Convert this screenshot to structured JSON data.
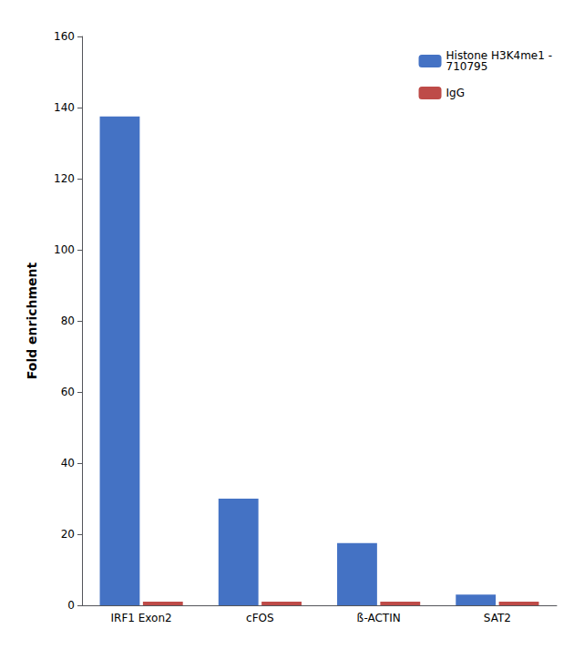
{
  "chart_data": {
    "type": "bar",
    "categories": [
      "IRF1 Exon2",
      "cFOS",
      "ß-ACTIN",
      "SAT2"
    ],
    "series": [
      {
        "name": "Histone H3K4me1 -\n710795",
        "color": "#4472C4",
        "values": [
          137.5,
          30.0,
          17.5,
          3.0
        ]
      },
      {
        "name": "IgG",
        "color": "#BE4B48",
        "values": [
          1.0,
          1.0,
          1.0,
          1.0
        ]
      }
    ],
    "ylabel": "Fold enrichment",
    "ylim": [
      0,
      160
    ],
    "yticks": [
      0,
      20,
      40,
      60,
      80,
      100,
      120,
      140,
      160
    ],
    "grid": false,
    "legend": "upper right"
  }
}
